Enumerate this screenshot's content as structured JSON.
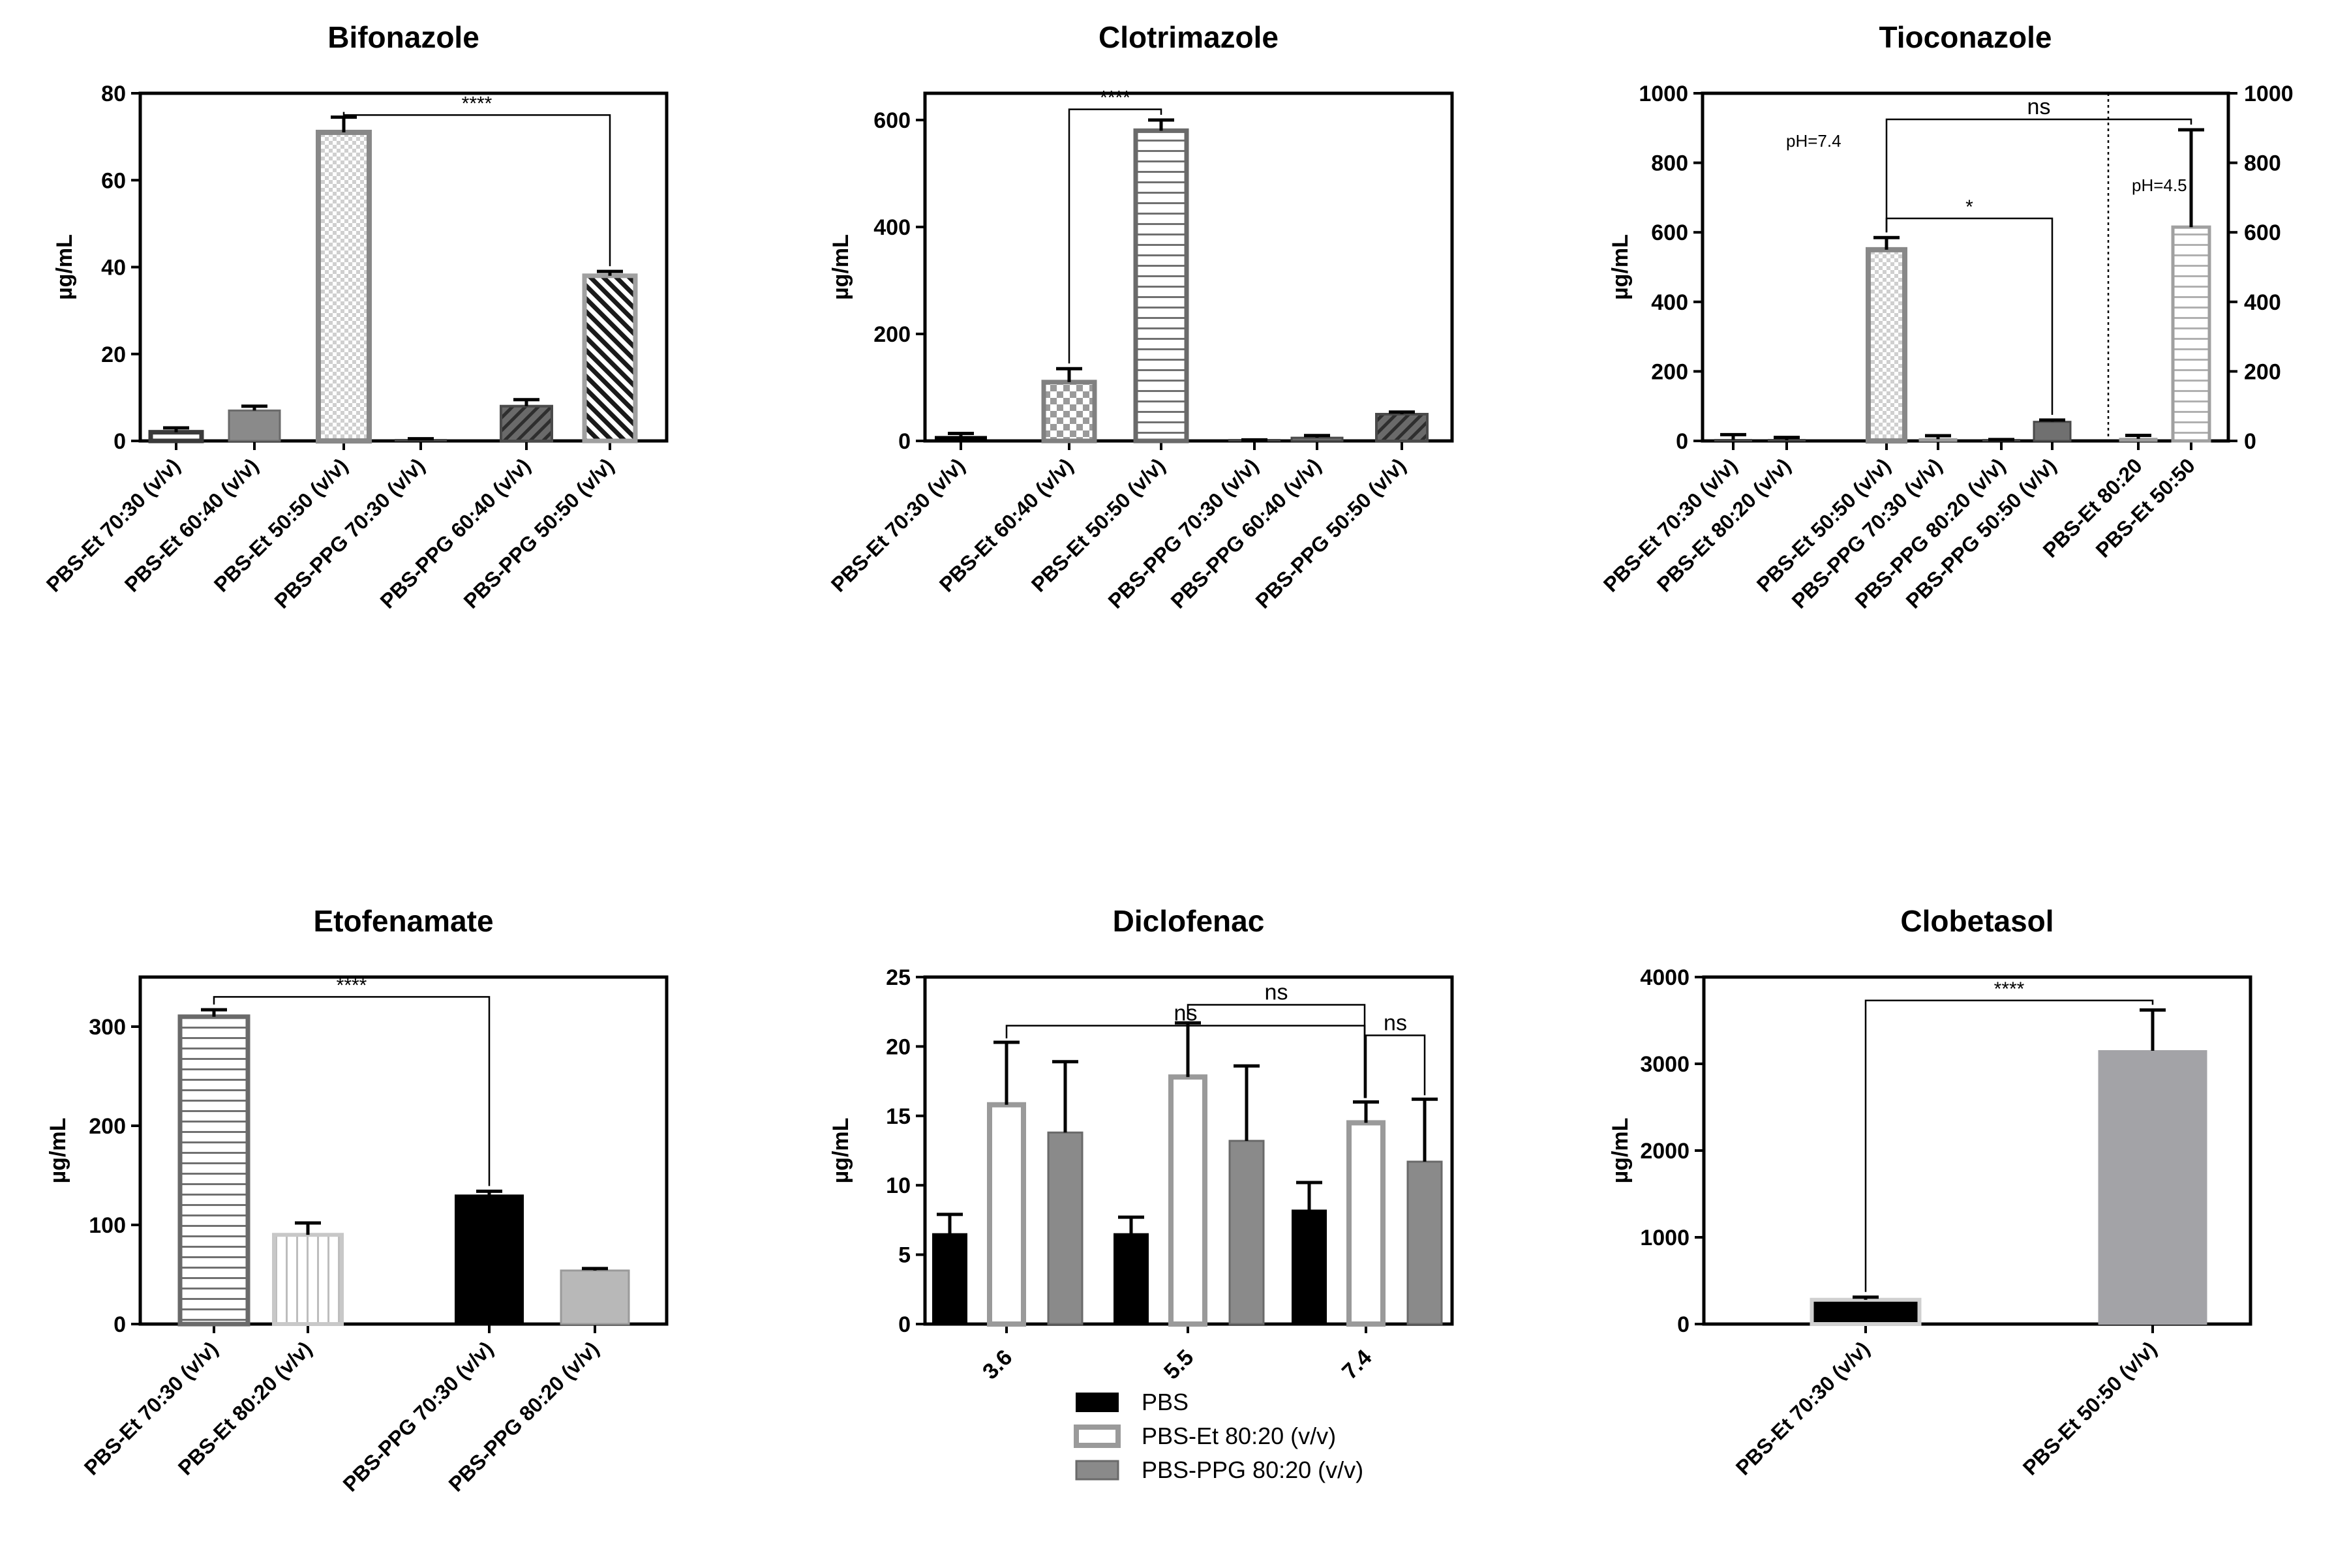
{
  "chart_data": [
    {
      "id": "bifonazole",
      "type": "bar",
      "title": "Bifonazole",
      "ylabel": "µg/mL",
      "ylim": [
        0,
        80
      ],
      "yticks": [
        "0",
        "20",
        "40",
        "60",
        "80"
      ],
      "categories": [
        "PBS-Et 70:30  (v/v)",
        "PBS-Et 60:40  (v/v)",
        "PBS-Et 50:50  (v/v)",
        "PBS-PPG 70:30  (v/v)",
        "PBS-PPG 60:40  (v/v)",
        "PBS-PPG 50:50 (v/v)"
      ],
      "values": [
        2,
        7,
        71,
        0.3,
        8,
        38
      ],
      "errors": [
        1,
        1,
        3.5,
        0.2,
        1.5,
        1
      ],
      "bar_styles": [
        "outline-dark",
        "solid-gray",
        "checker-light",
        "thin-dark",
        "hatch-dark",
        "hatch-black"
      ],
      "comparisons": [
        {
          "from": 2,
          "to": 5,
          "label": "****",
          "level": 75
        }
      ]
    },
    {
      "id": "clotrimazole",
      "type": "bar",
      "title": "Clotrimazole",
      "ylabel": "µg/mL",
      "ylim": [
        0,
        650
      ],
      "yticks": [
        "0",
        "200",
        "400",
        "600"
      ],
      "categories": [
        "PBS-Et 70:30  (v/v)",
        "PBS-Et 60:40  (v/v)",
        "PBS-Et 50:50  (v/v)",
        "PBS-PPG 70:30  (v/v)",
        "PBS-PPG 60:40  (v/v)",
        "PBS-PPG 50:50 (v/v)"
      ],
      "values": [
        8,
        110,
        580,
        1,
        6,
        50
      ],
      "errors": [
        6,
        25,
        20,
        1,
        4,
        4
      ],
      "bar_styles": [
        "solid-black",
        "checker-dark",
        "hstripe",
        "thin-dark",
        "solid-darkgray",
        "hatch-dark"
      ],
      "comparisons": [
        {
          "from": 1,
          "to": 2,
          "label": "****",
          "level": 620
        }
      ]
    },
    {
      "id": "tioconazole",
      "type": "bar",
      "title": "Tioconazole",
      "ylabel": "µg/mL",
      "ylim": [
        0,
        1000
      ],
      "yticks": [
        "0",
        "200",
        "400",
        "600",
        "800",
        "1000"
      ],
      "categories": [
        "PBS-Et 70:30  (v/v)",
        "PBS-Et 80:20  (v/v)",
        "PBS-Et 50:50  (v/v)",
        "PBS-PPG 70:30  (v/v)",
        "PBS-PPG 80:20  (v/v)",
        "PBS-PPG 50:50  (v/v)",
        "PBS-Et 80:20",
        "PBS-Et 50:50"
      ],
      "values": [
        3,
        2,
        550,
        5,
        2,
        55,
        6,
        615
      ],
      "errors": [
        15,
        8,
        35,
        10,
        2,
        5,
        10,
        280
      ],
      "bar_styles": [
        "thin-dark",
        "thin-dark",
        "checker-light",
        "solid-lightgray",
        "thin-dark",
        "solid-darkgray",
        "solid-lightgray",
        "hstripe-light"
      ],
      "comparisons": [
        {
          "from": 2,
          "to": 7,
          "label": "ns",
          "level": 925
        },
        {
          "from": 2,
          "to": 5,
          "label": "*",
          "level": 640
        }
      ],
      "annotations": [
        "pH=7.4",
        "pH=4.5"
      ]
    },
    {
      "id": "etofenamate",
      "type": "bar",
      "title": "Etofenamate",
      "ylabel": "µg/mL",
      "ylim": [
        0,
        350
      ],
      "yticks": [
        "0",
        "100",
        "200",
        "300"
      ],
      "categories": [
        "PBS-Et 70:30  (v/v)",
        "PBS-Et 80:20 (v/v)",
        "PBS-PPG 70:30 (v/v)",
        "PBS-PPG 80:20  (v/v)"
      ],
      "values": [
        310,
        90,
        130,
        54
      ],
      "errors": [
        7,
        12,
        4,
        2
      ],
      "bar_styles": [
        "hstripe",
        "vstripe-light",
        "solid-black",
        "solid-lightgray"
      ],
      "comparisons": [
        {
          "from": 0,
          "to": 2,
          "label": "****",
          "level": 330
        }
      ]
    },
    {
      "id": "diclofenac",
      "type": "bar",
      "title": "Diclofenac",
      "ylabel": "µg/mL",
      "ylim": [
        0,
        25
      ],
      "yticks": [
        "0",
        "5",
        "10",
        "15",
        "20",
        "25"
      ],
      "categories": [
        "3.6",
        "5.5",
        "7.4"
      ],
      "series": [
        {
          "name": "PBS",
          "values": [
            6.5,
            6.5,
            8.2
          ],
          "errors": [
            1.4,
            1.2,
            2.0
          ],
          "style": "solid-black"
        },
        {
          "name": "PBS-Et 80:20 (v/v)",
          "values": [
            15.8,
            17.8,
            14.5
          ],
          "errors": [
            4.5,
            3.9,
            1.5
          ],
          "style": "outline-gray"
        },
        {
          "name": "PBS-PPG 80:20 (v/v)",
          "values": [
            13.8,
            13.2,
            11.7
          ],
          "errors": [
            5.1,
            5.4,
            4.5
          ],
          "style": "solid-gray"
        }
      ],
      "comparisons": [
        {
          "label": "ns",
          "group_from": 0,
          "series_from": 1,
          "group_to": 2,
          "series_to": 1,
          "level": 21.5
        },
        {
          "label": "ns",
          "group_from": 1,
          "series_from": 1,
          "group_to": 2,
          "series_to": 1,
          "level": 23.0
        },
        {
          "label": "ns",
          "group_from": 2,
          "series_from": 1,
          "group_to": 2,
          "series_to": 2,
          "level": 20.8
        }
      ],
      "legend_position": "bottom"
    },
    {
      "id": "clobetasol",
      "type": "bar",
      "title": "Clobetasol",
      "ylabel": "µg/mL",
      "ylim": [
        0,
        4000
      ],
      "yticks": [
        "0",
        "1000",
        "2000",
        "3000",
        "4000"
      ],
      "categories": [
        "PBS-Et 70:30  (v/v)",
        "PBS-Et 50:50  (v/v)"
      ],
      "values": [
        280,
        3150
      ],
      "errors": [
        30,
        470
      ],
      "bar_styles": [
        "solid-black-lightborder",
        "solid-midgray"
      ],
      "comparisons": [
        {
          "from": 0,
          "to": 1,
          "label": "****",
          "level": 3730
        }
      ]
    }
  ]
}
